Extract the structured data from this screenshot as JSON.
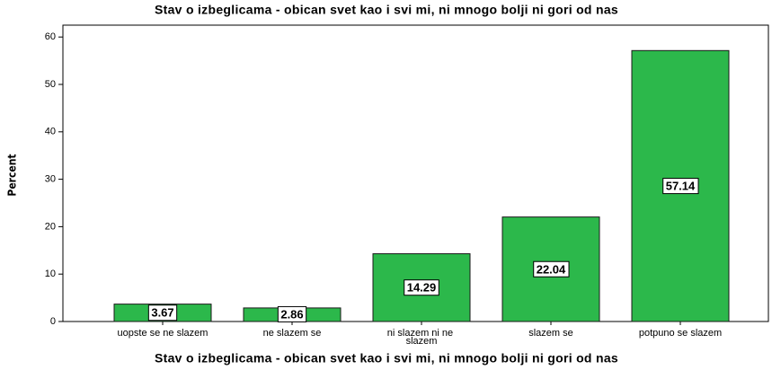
{
  "chart_data": {
    "type": "bar",
    "title": "Stav o izbeglicama - obican svet kao i svi mi, ni mnogo bolji ni gori od nas",
    "x_label": "Stav o izbeglicama - obican svet kao i svi mi, ni mnogo bolji ni gori od nas",
    "y_label": "Percent",
    "categories": [
      "uopste se ne slazem",
      "ne slazem se",
      "ni slazem ni ne slazem",
      "slazem se",
      "potpuno se slazem"
    ],
    "values": [
      3.67,
      2.86,
      14.29,
      22.04,
      57.14
    ],
    "color": "#2cb84b",
    "ylim": [
      0,
      62.5
    ],
    "yticks": [
      0,
      10,
      20,
      30,
      40,
      50,
      60
    ],
    "grid": false
  }
}
